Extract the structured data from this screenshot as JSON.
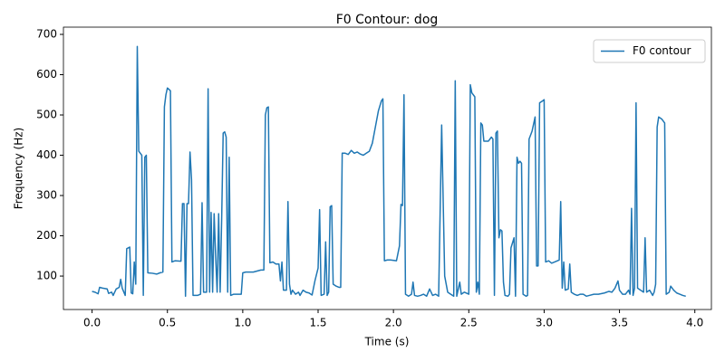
{
  "chart_data": {
    "type": "line",
    "title": "F0 Contour: dog",
    "x_label": "Time (s)",
    "y_label": "Frequency (Hz)",
    "xlim": [
      -0.19,
      4.11
    ],
    "ylim": [
      17,
      718
    ],
    "xticks": [
      {
        "value": 0,
        "label": "0.0"
      },
      {
        "value": 0.5,
        "label": "0.5"
      },
      {
        "value": 1,
        "label": "1.0"
      },
      {
        "value": 1.5,
        "label": "1.5"
      },
      {
        "value": 2,
        "label": "2.0"
      },
      {
        "value": 2.5,
        "label": "2.5"
      },
      {
        "value": 3,
        "label": "3.0"
      },
      {
        "value": 3.5,
        "label": "3.5"
      },
      {
        "value": 4,
        "label": "4.0"
      }
    ],
    "yticks": [
      100,
      200,
      300,
      400,
      500,
      600,
      700
    ],
    "grid": false,
    "legend": "upper right",
    "x": [
      0,
      0.02,
      0.04,
      0.05,
      0.07,
      0.1,
      0.11,
      0.13,
      0.14,
      0.16,
      0.18,
      0.19,
      0.2,
      0.22,
      0.23,
      0.25,
      0.26,
      0.27,
      0.28,
      0.29,
      0.3,
      0.31,
      0.33,
      0.34,
      0.35,
      0.36,
      0.37,
      0.4,
      0.43,
      0.45,
      0.47,
      0.48,
      0.49,
      0.5,
      0.52,
      0.53,
      0.55,
      0.59,
      0.6,
      0.61,
      0.62,
      0.63,
      0.64,
      0.65,
      0.66,
      0.67,
      0.7,
      0.72,
      0.73,
      0.74,
      0.76,
      0.77,
      0.78,
      0.79,
      0.8,
      0.81,
      0.82,
      0.83,
      0.84,
      0.85,
      0.86,
      0.87,
      0.88,
      0.89,
      0.9,
      0.91,
      0.92,
      0.94,
      0.97,
      0.99,
      1,
      1.02,
      1.07,
      1.12,
      1.14,
      1.15,
      1.16,
      1.17,
      1.18,
      1.2,
      1.22,
      1.24,
      1.25,
      1.26,
      1.27,
      1.29,
      1.3,
      1.31,
      1.32,
      1.33,
      1.35,
      1.37,
      1.38,
      1.4,
      1.42,
      1.44,
      1.46,
      1.48,
      1.5,
      1.51,
      1.52,
      1.54,
      1.55,
      1.56,
      1.57,
      1.58,
      1.59,
      1.6,
      1.62,
      1.64,
      1.65,
      1.66,
      1.68,
      1.7,
      1.72,
      1.74,
      1.76,
      1.78,
      1.8,
      1.82,
      1.84,
      1.86,
      1.88,
      1.9,
      1.92,
      1.93,
      1.94,
      1.96,
      1.98,
      2.02,
      2.04,
      2.05,
      2.06,
      2.07,
      2.08,
      2.1,
      2.12,
      2.13,
      2.14,
      2.16,
      2.18,
      2.2,
      2.22,
      2.24,
      2.26,
      2.28,
      2.3,
      2.32,
      2.34,
      2.36,
      2.38,
      2.4,
      2.41,
      2.42,
      2.44,
      2.45,
      2.47,
      2.5,
      2.51,
      2.52,
      2.54,
      2.55,
      2.56,
      2.57,
      2.58,
      2.59,
      2.6,
      2.63,
      2.65,
      2.66,
      2.67,
      2.68,
      2.69,
      2.7,
      2.71,
      2.72,
      2.73,
      2.74,
      2.76,
      2.77,
      2.78,
      2.8,
      2.81,
      2.82,
      2.83,
      2.84,
      2.85,
      2.86,
      2.88,
      2.89,
      2.9,
      2.92,
      2.94,
      2.95,
      2.96,
      2.97,
      2.99,
      3,
      3.01,
      3.03,
      3.05,
      3.07,
      3.1,
      3.11,
      3.12,
      3.13,
      3.14,
      3.16,
      3.17,
      3.18,
      3.2,
      3.22,
      3.24,
      3.26,
      3.28,
      3.3,
      3.33,
      3.36,
      3.4,
      3.43,
      3.45,
      3.47,
      3.49,
      3.5,
      3.52,
      3.54,
      3.56,
      3.57,
      3.58,
      3.59,
      3.6,
      3.61,
      3.62,
      3.64,
      3.66,
      3.67,
      3.68,
      3.7,
      3.72,
      3.73,
      3.74,
      3.75,
      3.76,
      3.78,
      3.8,
      3.81,
      3.83,
      3.84,
      3.86,
      3.88,
      3.9,
      3.92,
      3.94
    ],
    "series": [
      {
        "name": "F0 contour",
        "color": "#1f77b4",
        "values": [
          62,
          60,
          56,
          72,
          70,
          68,
          57,
          60,
          52,
          68,
          72,
          92,
          70,
          52,
          168,
          172,
          58,
          56,
          135,
          80,
          670,
          410,
          400,
          52,
          395,
          400,
          108,
          107,
          105,
          108,
          110,
          520,
          550,
          567,
          560,
          135,
          138,
          137,
          280,
          280,
          50,
          280,
          280,
          408,
          340,
          52,
          52,
          55,
          282,
          60,
          60,
          565,
          60,
          258,
          60,
          255,
          150,
          60,
          255,
          60,
          240,
          455,
          458,
          445,
          60,
          395,
          52,
          55,
          55,
          55,
          108,
          110,
          110,
          115,
          115,
          500,
          518,
          520,
          133,
          135,
          130,
          130,
          88,
          135,
          65,
          65,
          285,
          80,
          55,
          65,
          55,
          60,
          52,
          65,
          60,
          58,
          53,
          90,
          120,
          265,
          52,
          55,
          185,
          52,
          60,
          272,
          275,
          80,
          75,
          72,
          72,
          405,
          405,
          402,
          412,
          405,
          408,
          403,
          400,
          405,
          410,
          430,
          470,
          510,
          535,
          540,
          138,
          140,
          140,
          138,
          175,
          278,
          275,
          550,
          55,
          50,
          55,
          85,
          52,
          50,
          52,
          55,
          50,
          68,
          52,
          55,
          50,
          475,
          100,
          60,
          55,
          50,
          585,
          50,
          85,
          55,
          60,
          55,
          575,
          555,
          545,
          60,
          85,
          55,
          480,
          475,
          435,
          435,
          445,
          440,
          52,
          455,
          460,
          195,
          215,
          212,
          85,
          52,
          50,
          55,
          170,
          195,
          50,
          395,
          380,
          385,
          380,
          55,
          50,
          52,
          440,
          460,
          495,
          125,
          125,
          530,
          535,
          538,
          135,
          138,
          132,
          135,
          140,
          285,
          70,
          135,
          65,
          68,
          130,
          60,
          55,
          52,
          55,
          55,
          50,
          52,
          55,
          55,
          58,
          62,
          60,
          70,
          88,
          65,
          55,
          55,
          65,
          55,
          268,
          52,
          70,
          530,
          70,
          65,
          60,
          195,
          60,
          65,
          52,
          60,
          80,
          470,
          495,
          490,
          480,
          55,
          60,
          75,
          65,
          58,
          55,
          52,
          50
        ]
      }
    ]
  }
}
